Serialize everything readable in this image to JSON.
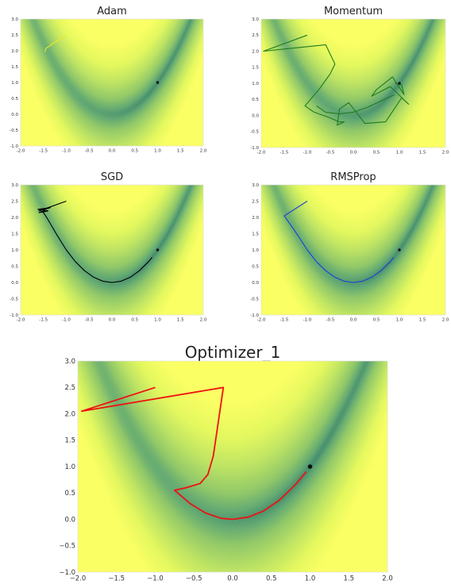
{
  "chart_data": [
    {
      "type": "line",
      "title": "Adam",
      "xlim": [
        -2.0,
        2.0
      ],
      "ylim": [
        -1.0,
        3.0
      ],
      "xticks": [
        "-2.0",
        "-1.5",
        "-1.0",
        "-0.5",
        "0.0",
        "0.5",
        "1.0",
        "1.5",
        "2.0"
      ],
      "yticks": [
        "-1.0",
        "-0.5",
        "0.0",
        "0.5",
        "1.0",
        "1.5",
        "2.0",
        "2.5",
        "3.0"
      ],
      "background": "heatmap of Rosenbrock function, colormap summer_r",
      "minimum_marker": [
        1.0,
        1.0
      ],
      "series": [
        {
          "color": "#e8e82a",
          "x": [
            -1.0,
            -1.12,
            -1.22,
            -1.32,
            -1.4,
            -1.45,
            -1.46,
            -1.47
          ],
          "y": [
            2.5,
            2.4,
            2.3,
            2.2,
            2.12,
            2.07,
            2.0,
            1.96
          ]
        }
      ]
    },
    {
      "type": "line",
      "title": "Momentum",
      "xlim": [
        -2.0,
        2.0
      ],
      "ylim": [
        -1.0,
        3.0
      ],
      "xticks": [
        "-2.0",
        "-1.5",
        "-1.0",
        "-0.5",
        "0.0",
        "0.5",
        "1.0",
        "1.5",
        "2.0"
      ],
      "yticks": [
        "-1.0",
        "-0.5",
        "0.0",
        "0.5",
        "1.0",
        "1.5",
        "2.0",
        "2.5",
        "3.0"
      ],
      "background": "heatmap of Rosenbrock function, colormap summer_r",
      "minimum_marker": [
        1.0,
        1.0
      ],
      "series": [
        {
          "color": "#1e7b1e",
          "x": [
            -1.0,
            -1.95,
            -0.6,
            -0.4,
            -0.5,
            -0.6,
            -0.75,
            -0.9,
            -1.05,
            -0.85,
            -0.55,
            -0.3,
            -0.2,
            -0.35,
            -0.3,
            -0.1,
            0.25,
            0.7,
            1.05,
            1.2,
            0.8,
            0.4,
            0.5,
            0.85,
            1.1,
            1.05,
            0.9
          ],
          "y": [
            2.5,
            2.0,
            2.2,
            1.6,
            1.3,
            1.1,
            0.8,
            0.55,
            0.3,
            0.1,
            -0.05,
            -0.2,
            -0.2,
            -0.3,
            0.2,
            0.4,
            -0.25,
            -0.2,
            0.55,
            0.35,
            0.9,
            0.6,
            0.8,
            1.2,
            0.65,
            0.95,
            1.0
          ]
        },
        {
          "color": "#1e7b1e",
          "x": [
            -0.8,
            -0.6,
            -0.3,
            0.0,
            0.3,
            0.6,
            0.9
          ],
          "y": [
            0.3,
            0.1,
            0.05,
            0.1,
            0.25,
            0.45,
            0.65
          ]
        }
      ]
    },
    {
      "type": "line",
      "title": "SGD",
      "xlim": [
        -2.0,
        2.0
      ],
      "ylim": [
        -1.0,
        3.0
      ],
      "xticks": [
        "-2.0",
        "-1.5",
        "-1.0",
        "-0.5",
        "0.0",
        "0.5",
        "1.0",
        "1.5",
        "2.0"
      ],
      "yticks": [
        "-1.0",
        "-0.5",
        "0.0",
        "0.5",
        "1.0",
        "1.5",
        "2.0",
        "2.5",
        "3.0"
      ],
      "background": "heatmap of Rosenbrock function, colormap summer_r",
      "minimum_marker": [
        1.0,
        1.0
      ],
      "series": [
        {
          "color": "#000000",
          "x": [
            -1.0,
            -1.6,
            -1.35,
            -1.62,
            -1.4,
            -1.6,
            -1.45,
            -1.55,
            -1.5,
            -1.4,
            -1.2,
            -1.0,
            -0.8,
            -0.6,
            -0.4,
            -0.2,
            0.0,
            0.2,
            0.4,
            0.6,
            0.8,
            0.88
          ],
          "y": [
            2.5,
            2.2,
            2.3,
            2.25,
            2.2,
            2.15,
            2.2,
            2.18,
            2.15,
            1.93,
            1.45,
            1.0,
            0.64,
            0.36,
            0.16,
            0.04,
            0.0,
            0.04,
            0.16,
            0.36,
            0.64,
            0.77
          ]
        }
      ]
    },
    {
      "type": "line",
      "title": "RMSProp",
      "xlim": [
        -2.0,
        2.0
      ],
      "ylim": [
        -1.0,
        3.0
      ],
      "xticks": [
        "-2.0",
        "-1.5",
        "-1.0",
        "-0.5",
        "0.0",
        "0.5",
        "1.0",
        "1.5",
        "2.0"
      ],
      "yticks": [
        "-1.0",
        "-0.5",
        "0.0",
        "0.5",
        "1.0",
        "1.5",
        "2.0",
        "2.5",
        "3.0"
      ],
      "background": "heatmap of Rosenbrock function, colormap summer_r",
      "minimum_marker": [
        1.0,
        1.0
      ],
      "series": [
        {
          "color": "#1f3fd6",
          "x": [
            -1.0,
            -1.5,
            -1.2,
            -1.0,
            -0.8,
            -0.6,
            -0.4,
            -0.2,
            0.0,
            0.2,
            0.4,
            0.6,
            0.8,
            0.88
          ],
          "y": [
            2.5,
            2.05,
            1.44,
            1.0,
            0.64,
            0.36,
            0.16,
            0.04,
            0.0,
            0.04,
            0.16,
            0.36,
            0.64,
            0.77
          ]
        }
      ]
    },
    {
      "type": "line",
      "title": "Optimizer_1",
      "xlim": [
        -2.0,
        2.0
      ],
      "ylim": [
        -1.0,
        3.0
      ],
      "xticks": [
        "−2.0",
        "−1.5",
        "−1.0",
        "−0.5",
        "0.0",
        "0.5",
        "1.0",
        "1.5",
        "2.0"
      ],
      "yticks": [
        "−1.0",
        "−0.5",
        "0.0",
        "0.5",
        "1.0",
        "1.5",
        "2.0",
        "2.5",
        "3.0"
      ],
      "background": "heatmap of Rosenbrock function, colormap summer_r",
      "minimum_marker": [
        1.0,
        1.0
      ],
      "series": [
        {
          "color": "#ee1111",
          "x": [
            -1.0,
            -1.95,
            -0.12,
            -0.2,
            -0.25,
            -0.32,
            -0.42,
            -0.6,
            -0.75,
            -0.55,
            -0.35,
            -0.15,
            0.0,
            0.2,
            0.4,
            0.6,
            0.8,
            0.95
          ],
          "y": [
            2.5,
            2.05,
            2.5,
            1.7,
            1.2,
            0.85,
            0.68,
            0.6,
            0.55,
            0.3,
            0.12,
            0.02,
            0.0,
            0.04,
            0.16,
            0.36,
            0.64,
            0.9
          ]
        }
      ]
    }
  ]
}
